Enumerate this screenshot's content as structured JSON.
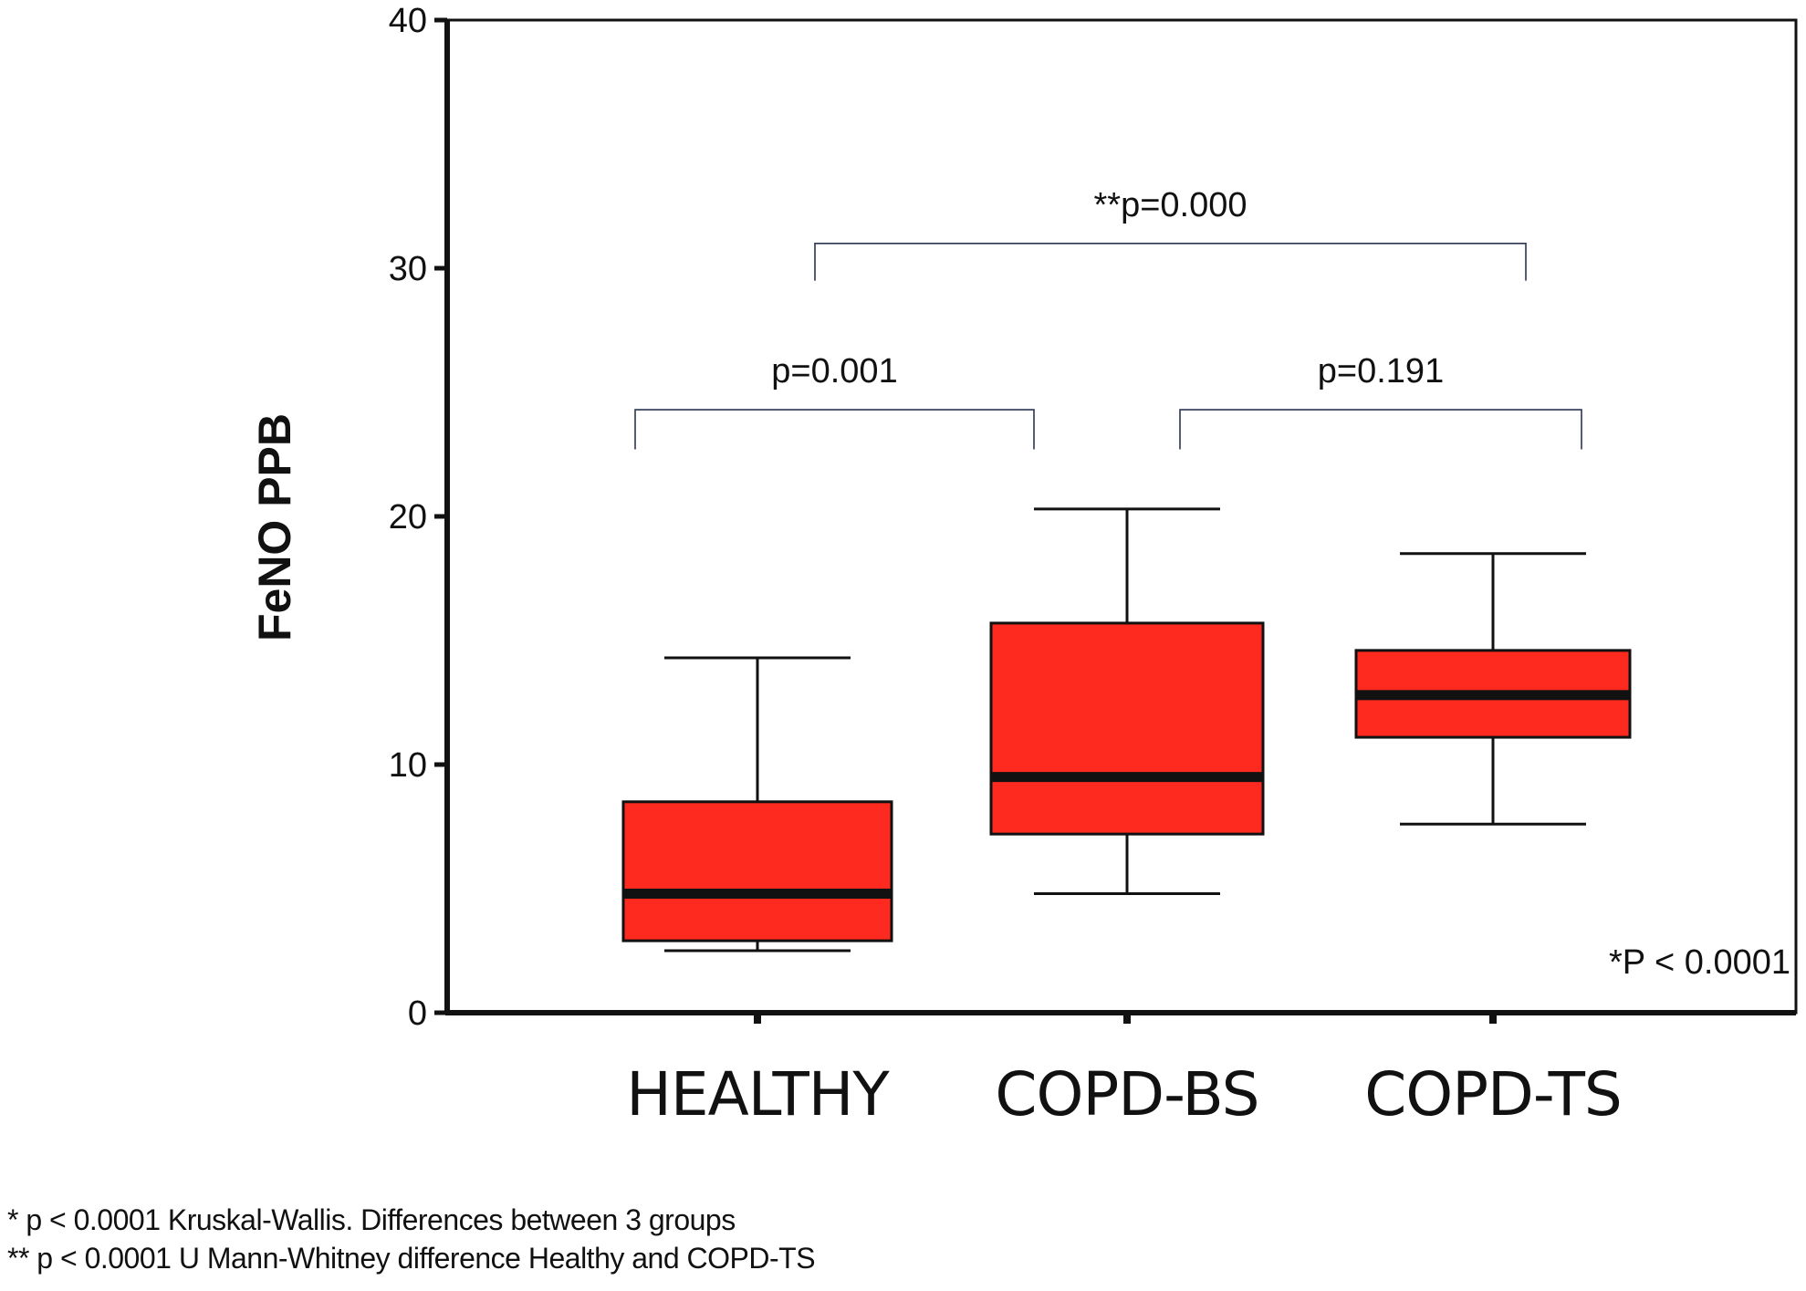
{
  "chart_data": {
    "type": "box",
    "ylabel": "FeNO PPB",
    "xlabel": "",
    "ylim": [
      0,
      40
    ],
    "yticks": [
      0,
      10,
      20,
      30,
      40
    ],
    "categories": [
      "HEALTHY",
      "COPD-BS",
      "COPD-TS"
    ],
    "box_color": "#ff2a1f",
    "boxes": [
      {
        "name": "HEALTHY",
        "whisker_low": 2.5,
        "q1": 2.9,
        "median": 4.8,
        "q3": 8.5,
        "whisker_high": 14.3
      },
      {
        "name": "COPD-BS",
        "whisker_low": 4.8,
        "q1": 7.2,
        "median": 9.5,
        "q3": 15.7,
        "whisker_high": 20.3
      },
      {
        "name": "COPD-TS",
        "whisker_low": 7.6,
        "q1": 11.1,
        "median": 12.8,
        "q3": 14.6,
        "whisker_high": 18.5
      }
    ],
    "comparisons": [
      {
        "from": "HEALTHY",
        "to": "COPD-TS",
        "label": "**p=0.000",
        "y": 31,
        "tick_low": 29.5
      },
      {
        "from": "HEALTHY",
        "to": "COPD-BS",
        "label": "p=0.001",
        "y": 24.3,
        "tick_low": 22.7
      },
      {
        "from": "COPD-BS",
        "to": "COPD-TS",
        "label": "p=0.191",
        "y": 24.3,
        "tick_low": 22.7
      }
    ],
    "overall_annotation": "*P < 0.0001"
  },
  "footnotes": [
    "* p < 0.0001 Kruskal-Wallis. Differences between 3 groups",
    "** p < 0.0001 U Mann-Whitney difference Healthy and COPD-TS"
  ]
}
